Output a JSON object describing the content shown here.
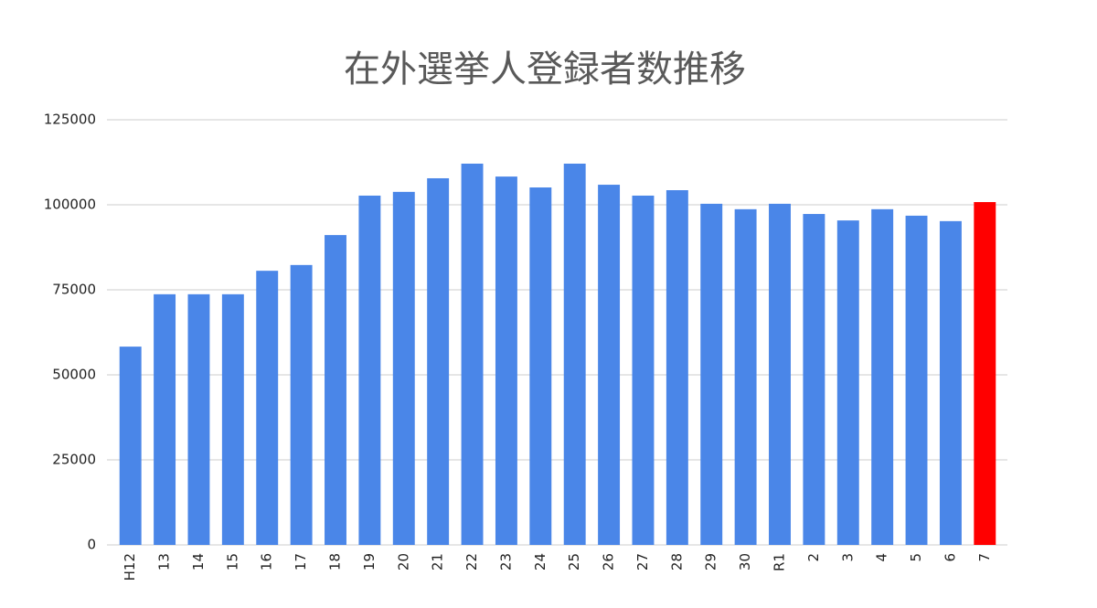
{
  "chart_data": {
    "type": "bar",
    "title": "在外選挙人登録者数推移",
    "categories": [
      "H12",
      "13",
      "14",
      "15",
      "16",
      "17",
      "18",
      "19",
      "20",
      "21",
      "22",
      "23",
      "24",
      "25",
      "26",
      "27",
      "28",
      "29",
      "30",
      "R1",
      "2",
      "3",
      "4",
      "5",
      "6",
      "7"
    ],
    "values": [
      58300,
      73700,
      73700,
      73700,
      80600,
      82300,
      91100,
      102700,
      103800,
      107800,
      112100,
      108300,
      105100,
      112100,
      105900,
      102700,
      104300,
      100300,
      98700,
      100300,
      97300,
      95400,
      98700,
      96800,
      95200,
      100800
    ],
    "colors": [
      "#4a86e8",
      "#4a86e8",
      "#4a86e8",
      "#4a86e8",
      "#4a86e8",
      "#4a86e8",
      "#4a86e8",
      "#4a86e8",
      "#4a86e8",
      "#4a86e8",
      "#4a86e8",
      "#4a86e8",
      "#4a86e8",
      "#4a86e8",
      "#4a86e8",
      "#4a86e8",
      "#4a86e8",
      "#4a86e8",
      "#4a86e8",
      "#4a86e8",
      "#4a86e8",
      "#4a86e8",
      "#4a86e8",
      "#4a86e8",
      "#4a86e8",
      "#ff0000"
    ],
    "ylim": [
      0,
      125000
    ],
    "yticks": [
      0,
      25000,
      50000,
      75000,
      100000,
      125000
    ],
    "grid": true
  }
}
